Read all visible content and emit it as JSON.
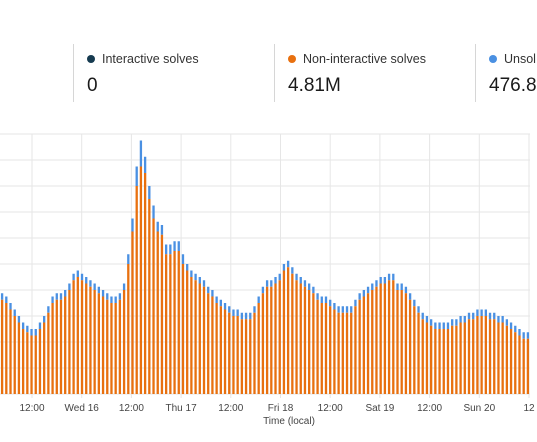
{
  "stats": [
    {
      "label": "Interactive solves",
      "value": "0",
      "color": "#163b50"
    },
    {
      "label": "Non-interactive solves",
      "value": "4.81M",
      "color": "#e8700f"
    },
    {
      "label": "Unsol",
      "value": "476.8",
      "color": "#4a90e2"
    }
  ],
  "chart_data": {
    "type": "bar",
    "stacked": true,
    "xlabel": "Time (local)",
    "tick_labels": [
      "12:00",
      "Wed 16",
      "12:00",
      "Thu 17",
      "12:00",
      "Fri 18",
      "12:00",
      "Sat 19",
      "12:00",
      "Sun 20",
      "12"
    ],
    "grid": true,
    "colors": {
      "non_interactive": "#e8700f",
      "unsolved": "#4a90e2",
      "grid": "#e6e6e6"
    },
    "totals": [
      31,
      30,
      28,
      26,
      24,
      22,
      21,
      20,
      20,
      22,
      24,
      27,
      30,
      31,
      31,
      32,
      34,
      37,
      38,
      37,
      36,
      35,
      34,
      33,
      32,
      31,
      30,
      30,
      31,
      34,
      43,
      54,
      70,
      78,
      73,
      64,
      58,
      53,
      52,
      46,
      46,
      47,
      47,
      43,
      40,
      38,
      37,
      36,
      35,
      33,
      32,
      30,
      29,
      28,
      27,
      26,
      26,
      25,
      25,
      25,
      27,
      30,
      33,
      35,
      35,
      36,
      37,
      40,
      41,
      39,
      37,
      36,
      35,
      34,
      33,
      31,
      30,
      30,
      29,
      28,
      27,
      27,
      27,
      27,
      29,
      31,
      32,
      33,
      34,
      35,
      36,
      36,
      37,
      37,
      34,
      34,
      33,
      31,
      29,
      27,
      25,
      24,
      23,
      22,
      22,
      22,
      22,
      23,
      23,
      24,
      24,
      25,
      25,
      26,
      26,
      26,
      25,
      25,
      24,
      24,
      23,
      22,
      21,
      20,
      19,
      19
    ],
    "unsolved": [
      2,
      2,
      2,
      2,
      2,
      2,
      2,
      2,
      2,
      2,
      2,
      2,
      2,
      2,
      2,
      2,
      2,
      2,
      2,
      2,
      2,
      2,
      2,
      2,
      2,
      2,
      2,
      2,
      2,
      2,
      3,
      4,
      6,
      8,
      5,
      4,
      4,
      3,
      3,
      3,
      3,
      3,
      3,
      3,
      2,
      2,
      2,
      2,
      2,
      2,
      2,
      2,
      2,
      2,
      2,
      2,
      2,
      2,
      2,
      2,
      2,
      2,
      2,
      2,
      2,
      2,
      2,
      2,
      2,
      2,
      2,
      2,
      2,
      2,
      2,
      2,
      2,
      2,
      2,
      2,
      2,
      2,
      2,
      2,
      2,
      2,
      2,
      2,
      2,
      2,
      2,
      2,
      2,
      2,
      2,
      2,
      2,
      2,
      2,
      2,
      2,
      2,
      2,
      2,
      2,
      2,
      2,
      2,
      2,
      2,
      2,
      2,
      2,
      2,
      2,
      2,
      2,
      2,
      2,
      2,
      2,
      2,
      2,
      2,
      2,
      2
    ],
    "ylim": [
      0,
      80
    ]
  }
}
